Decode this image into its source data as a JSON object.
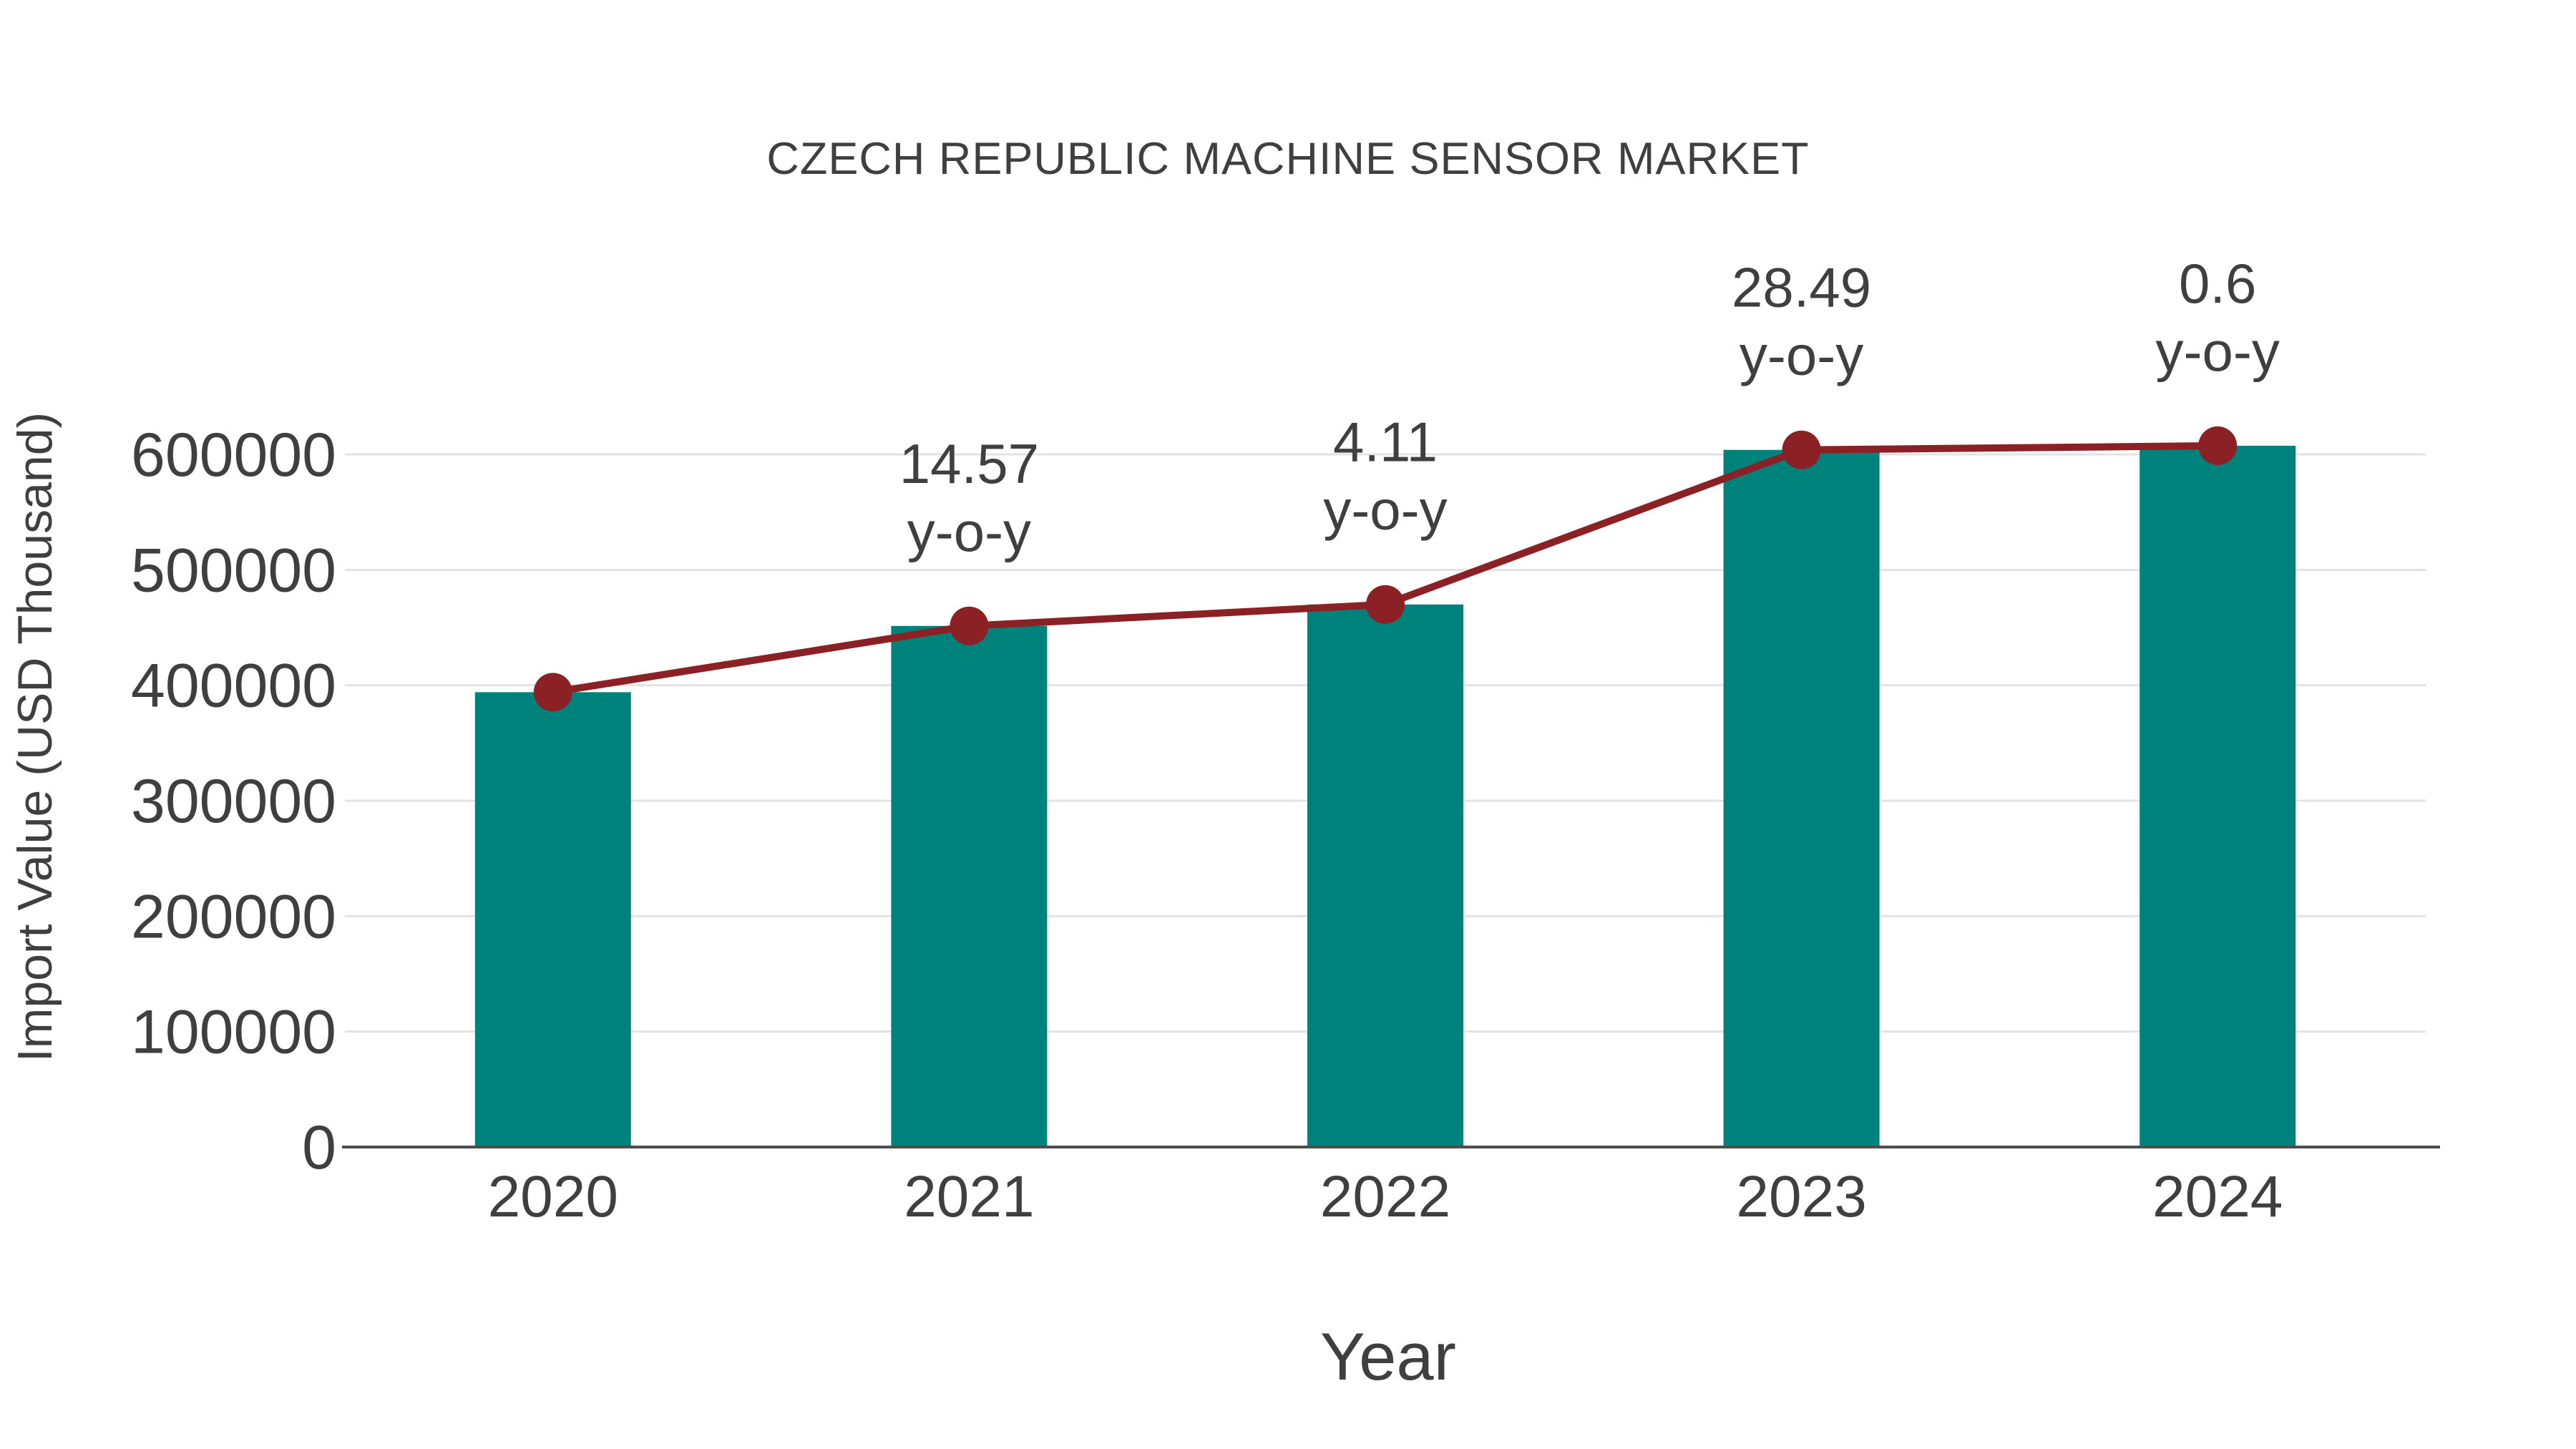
{
  "page": {
    "background": "#ffffff"
  },
  "chart_data": {
    "type": "bar",
    "title": "CZECH REPUBLIC MACHINE SENSOR MARKET",
    "xlabel": "Year",
    "ylabel": "Import Value (USD Thousand)",
    "categories": [
      "2020",
      "2021",
      "2022",
      "2023",
      "2024"
    ],
    "series": [
      {
        "name": "Import Value (USD Thousand)",
        "type": "bar",
        "color": "#00827c",
        "values": [
          394000,
          451400,
          470000,
          603900,
          607500
        ]
      },
      {
        "name": "Import Value trend",
        "type": "line",
        "color": "#8b2025",
        "marker": "circle",
        "values": [
          394000,
          451400,
          470000,
          603900,
          607500
        ]
      }
    ],
    "annotations": [
      {
        "category": "2021",
        "value": "14.57",
        "suffix": "y-o-y"
      },
      {
        "category": "2022",
        "value": "4.11",
        "suffix": "y-o-y"
      },
      {
        "category": "2023",
        "value": "28.49",
        "suffix": "y-o-y"
      },
      {
        "category": "2024",
        "value": "0.6",
        "suffix": "y-o-y"
      }
    ],
    "yticks": [
      0,
      100000,
      200000,
      300000,
      400000,
      500000,
      600000
    ],
    "ylim": [
      0,
      660000
    ],
    "grid": true,
    "legend": false,
    "colors": {
      "bar": "#00827c",
      "line": "#8b2025",
      "text": "#3f3f3f",
      "gridline": "#e3e3e3",
      "axis": "#4d4d4d"
    }
  }
}
